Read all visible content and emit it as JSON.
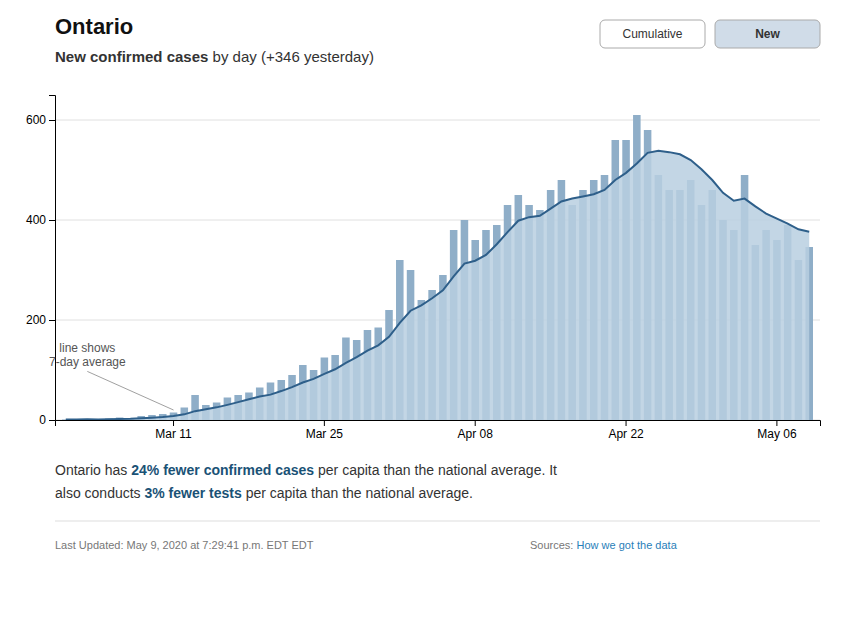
{
  "chart_data": {
    "type": "bar",
    "title": "Ontario",
    "subtitle": [
      "New confirmed cases",
      " by day (+346 yesterday)"
    ],
    "buttons": [
      {
        "text": "Cumulative"
      },
      {
        "text": "New",
        "active": true
      }
    ],
    "categories": [
      null,
      null,
      null,
      null,
      null,
      null,
      null,
      null,
      null,
      null,
      "Mar 11",
      null,
      null,
      null,
      null,
      null,
      null,
      null,
      null,
      null,
      null,
      null,
      null,
      null,
      "Mar 25",
      null,
      null,
      null,
      null,
      null,
      null,
      null,
      null,
      null,
      null,
      null,
      null,
      null,
      "Apr 08",
      null,
      null,
      null,
      null,
      null,
      null,
      null,
      null,
      null,
      null,
      null,
      null,
      null,
      "Apr 22",
      null,
      null,
      null,
      null,
      null,
      null,
      null,
      null,
      null,
      null,
      null,
      null,
      null,
      "May 06",
      null,
      null,
      null
    ],
    "series": [
      {
        "type": "bar",
        "color": "#8faec8",
        "values": [
          1,
          1,
          2,
          1,
          3,
          5,
          4,
          8,
          10,
          12,
          15,
          25,
          50,
          30,
          35,
          45,
          50,
          55,
          65,
          75,
          80,
          90,
          110,
          100,
          125,
          130,
          165,
          160,
          180,
          185,
          220,
          320,
          300,
          240,
          260,
          290,
          380,
          400,
          360,
          380,
          390,
          430,
          450,
          430,
          420,
          460,
          480,
          430,
          460,
          480,
          490,
          560,
          560,
          610,
          580,
          490,
          460,
          460,
          480,
          430,
          460,
          400,
          380,
          490,
          350,
          380,
          360,
          390,
          320,
          346
        ]
      },
      {
        "type": "area",
        "color": "#b8cfe0",
        "values": [
          1,
          1,
          1.3333333333333333,
          1.25,
          1.6,
          2.1666666666666665,
          2.4285714285714284,
          3.4285714285714284,
          4.714285714285714,
          6.142857142857143,
          8.142857142857142,
          11.285714285714286,
          17.714285714285715,
          21.428571428571427,
          25.285714285714285,
          30.285714285714285,
          35.714285714285715,
          41.42857142857143,
          47.142857142857146,
          50.714285714285715,
          57.857142857142854,
          65.71428571428571,
          75,
          82.14285714285714,
          92.14285714285714,
          101.42857142857143,
          114.28571428571429,
          125.71428571428571,
          138.57142857142858,
          149.28571428571428,
          166.42857142857142,
          194.28571428571428,
          218.57142857142858,
          229.28571428571428,
          243.57142857142858,
          259.2857142857143,
          287.14285714285717,
          312.85714285714283,
          318.57142857142856,
          330,
          351.42857142857144,
          375.7142857142857,
          398.57142857142856,
          405.7142857142857,
          408.57142857142856,
          422.85714285714283,
          437.14285714285717,
          442.85714285714283,
          447.14285714285717,
          451.42857142857144,
          460,
          480,
          494.2857142857143,
          512.8571428571429,
          534.2857142857143,
          538.5714285714286,
          535.7142857142857,
          531.4285714285714,
          520,
          501.42857142857144,
          480,
          454.2857142857143,
          438.57142857142856,
          442.85714285714283,
          427.14285714285717,
          412.85714285714283,
          402.85714285714283,
          392.85714285714283,
          381.42857142857144,
          376.57142857142856
        ]
      },
      {
        "type": "line",
        "color": "#2e5f8a",
        "values": [
          1,
          1,
          1.3333333333333333,
          1.25,
          1.6,
          2.1666666666666665,
          2.4285714285714284,
          3.4285714285714284,
          4.714285714285714,
          6.142857142857143,
          8.142857142857142,
          11.285714285714286,
          17.714285714285715,
          21.428571428571427,
          25.285714285714285,
          30.285714285714285,
          35.714285714285715,
          41.42857142857143,
          47.142857142857146,
          50.714285714285715,
          57.857142857142854,
          65.71428571428571,
          75,
          82.14285714285714,
          92.14285714285714,
          101.42857142857143,
          114.28571428571429,
          125.71428571428571,
          138.57142857142858,
          149.28571428571428,
          166.42857142857142,
          194.28571428571428,
          218.57142857142858,
          229.28571428571428,
          243.57142857142858,
          259.2857142857143,
          287.14285714285717,
          312.85714285714283,
          318.57142857142856,
          330,
          351.42857142857144,
          375.7142857142857,
          398.57142857142856,
          405.7142857142857,
          408.57142857142856,
          422.85714285714283,
          437.14285714285717,
          442.85714285714283,
          447.14285714285717,
          451.42857142857144,
          460,
          480,
          494.2857142857143,
          512.8571428571429,
          534.2857142857143,
          538.5714285714286,
          535.7142857142857,
          531.4285714285714,
          520,
          501.42857142857144,
          480,
          454.2857142857143,
          438.57142857142856,
          442.85714285714283,
          427.14285714285717,
          412.85714285714283,
          402.85714285714283,
          392.85714285714283,
          381.42857142857144,
          376.57142857142856
        ]
      }
    ],
    "ylim": [
      0,
      650
    ],
    "yticks": [
      0,
      200,
      400,
      600
    ],
    "grid": true,
    "annotations": [
      {
        "text": "line shows\n7-day average",
        "x": 10,
        "y": 20,
        "text_x": 2,
        "text_y": 130
      }
    ],
    "footer": [
      [
        "Ontario has ",
        "24% fewer confirmed cases",
        " per capita than the national average. It"
      ],
      [
        "also conducts ",
        "3% fewer tests",
        " per capita than the national average."
      ]
    ],
    "last_updated": "Last Updated: May 9, 2020 at 7:29:41 p.m. EDT EDT",
    "sources": {
      "label": "Sources: ",
      "link": "How we got the data"
    }
  }
}
